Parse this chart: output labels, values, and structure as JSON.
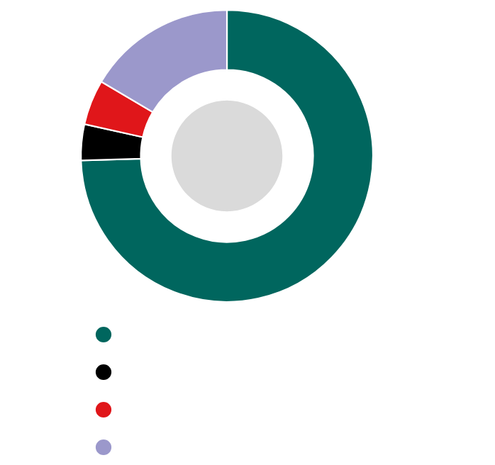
{
  "chart_data": {
    "type": "donut",
    "categories": [
      null,
      null,
      null,
      null
    ],
    "values": [
      74.5,
      4,
      5,
      16.5
    ],
    "colors": [
      "#00665e",
      "#000000",
      "#e0161a",
      "#9b98cb"
    ]
  }
}
